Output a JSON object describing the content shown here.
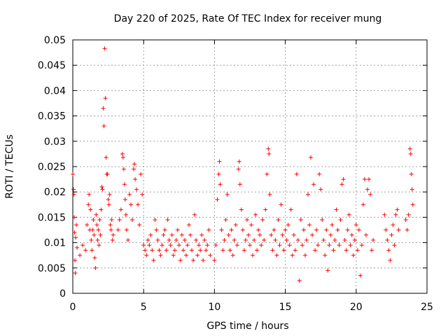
{
  "chart_data": {
    "type": "scatter",
    "title": "Day 220 of 2025, Rate Of TEC Index for receiver mung",
    "xlabel": "GPS time / hours",
    "ylabel": "ROTI / TECUs",
    "xlim": [
      0,
      25
    ],
    "ylim": [
      0,
      0.05
    ],
    "xticks": [
      0,
      5,
      10,
      15,
      20,
      25
    ],
    "yticks": [
      0,
      0.005,
      0.01,
      0.015,
      0.02,
      0.025,
      0.03,
      0.035,
      0.04,
      0.045,
      0.05
    ],
    "xtick_labels": [
      "0",
      "5",
      "10",
      "15",
      "20",
      "25"
    ],
    "ytick_labels": [
      "0",
      "0.005",
      "0.01",
      "0.015",
      "0.02",
      "0.025",
      "0.03",
      "0.035",
      "0.04",
      "0.045",
      "0.05"
    ],
    "grid": true,
    "marker": "+",
    "color": "#ff0000",
    "series": [
      {
        "name": "ROTI",
        "points": [
          [
            0.0,
            0.0235
          ],
          [
            0.05,
            0.0205
          ],
          [
            0.08,
            0.0195
          ],
          [
            0.1,
            0.015
          ],
          [
            0.12,
            0.012
          ],
          [
            0.15,
            0.0065
          ],
          [
            0.18,
            0.004
          ],
          [
            0.2,
            0.011
          ],
          [
            0.25,
            0.0135
          ],
          [
            0.3,
            0.009
          ],
          [
            0.5,
            0.0075
          ],
          [
            0.7,
            0.0095
          ],
          [
            0.9,
            0.0085
          ],
          [
            1.0,
            0.0135
          ],
          [
            1.1,
            0.0175
          ],
          [
            1.15,
            0.0195
          ],
          [
            1.2,
            0.0125
          ],
          [
            1.25,
            0.0165
          ],
          [
            1.3,
            0.0105
          ],
          [
            1.35,
            0.0085
          ],
          [
            1.4,
            0.0125
          ],
          [
            1.45,
            0.0145
          ],
          [
            1.5,
            0.0115
          ],
          [
            1.55,
            0.007
          ],
          [
            1.6,
            0.005
          ],
          [
            1.65,
            0.0155
          ],
          [
            1.7,
            0.0135
          ],
          [
            1.75,
            0.0105
          ],
          [
            1.8,
            0.0125
          ],
          [
            1.85,
            0.0095
          ],
          [
            1.9,
            0.0145
          ],
          [
            1.95,
            0.0115
          ],
          [
            2.0,
            0.0165
          ],
          [
            2.05,
            0.021
          ],
          [
            2.1,
            0.0205
          ],
          [
            2.15,
            0.0365
          ],
          [
            2.2,
            0.033
          ],
          [
            2.25,
            0.0483
          ],
          [
            2.3,
            0.0385
          ],
          [
            2.35,
            0.0268
          ],
          [
            2.4,
            0.0235
          ],
          [
            2.45,
            0.0235
          ],
          [
            2.5,
            0.0185
          ],
          [
            2.55,
            0.0175
          ],
          [
            2.6,
            0.0195
          ],
          [
            2.65,
            0.0135
          ],
          [
            2.7,
            0.0125
          ],
          [
            2.75,
            0.0145
          ],
          [
            2.8,
            0.0105
          ],
          [
            2.85,
            0.0115
          ],
          [
            3.2,
            0.0125
          ],
          [
            3.3,
            0.0145
          ],
          [
            3.4,
            0.0165
          ],
          [
            3.5,
            0.0275
          ],
          [
            3.55,
            0.0268
          ],
          [
            3.6,
            0.0245
          ],
          [
            3.65,
            0.0215
          ],
          [
            3.7,
            0.0185
          ],
          [
            3.75,
            0.0155
          ],
          [
            3.8,
            0.0125
          ],
          [
            3.9,
            0.0105
          ],
          [
            4.0,
            0.0195
          ],
          [
            4.1,
            0.0175
          ],
          [
            4.2,
            0.0145
          ],
          [
            4.3,
            0.0245
          ],
          [
            4.35,
            0.0255
          ],
          [
            4.4,
            0.0225
          ],
          [
            4.5,
            0.0205
          ],
          [
            4.6,
            0.0175
          ],
          [
            4.7,
            0.0135
          ],
          [
            4.8,
            0.0235
          ],
          [
            4.9,
            0.0195
          ],
          [
            5.0,
            0.0095
          ],
          [
            5.1,
            0.0085
          ],
          [
            5.2,
            0.0075
          ],
          [
            5.3,
            0.0105
          ],
          [
            5.4,
            0.0095
          ],
          [
            5.5,
            0.0115
          ],
          [
            5.6,
            0.0085
          ],
          [
            5.7,
            0.0065
          ],
          [
            5.8,
            0.0145
          ],
          [
            5.9,
            0.0125
          ],
          [
            6.0,
            0.0105
          ],
          [
            6.1,
            0.0085
          ],
          [
            6.2,
            0.0075
          ],
          [
            6.3,
            0.0095
          ],
          [
            6.4,
            0.0115
          ],
          [
            6.5,
            0.0125
          ],
          [
            6.6,
            0.0085
          ],
          [
            6.7,
            0.0145
          ],
          [
            6.8,
            0.0105
          ],
          [
            6.9,
            0.0095
          ],
          [
            7.0,
            0.0115
          ],
          [
            7.1,
            0.0075
          ],
          [
            7.2,
            0.0085
          ],
          [
            7.3,
            0.0105
          ],
          [
            7.4,
            0.0125
          ],
          [
            7.5,
            0.0095
          ],
          [
            7.6,
            0.0065
          ],
          [
            7.7,
            0.0115
          ],
          [
            7.8,
            0.0085
          ],
          [
            7.9,
            0.0105
          ],
          [
            8.0,
            0.0075
          ],
          [
            8.1,
            0.0095
          ],
          [
            8.2,
            0.0135
          ],
          [
            8.3,
            0.0115
          ],
          [
            8.4,
            0.0085
          ],
          [
            8.5,
            0.0065
          ],
          [
            8.6,
            0.0155
          ],
          [
            8.7,
            0.0105
          ],
          [
            8.8,
            0.0075
          ],
          [
            8.9,
            0.0095
          ],
          [
            9.0,
            0.0085
          ],
          [
            9.1,
            0.0115
          ],
          [
            9.2,
            0.0065
          ],
          [
            9.3,
            0.0105
          ],
          [
            9.4,
            0.0085
          ],
          [
            9.5,
            0.0095
          ],
          [
            9.6,
            0.0125
          ],
          [
            9.7,
            0.0075
          ],
          [
            10.0,
            0.0065
          ],
          [
            10.1,
            0.0095
          ],
          [
            10.2,
            0.0185
          ],
          [
            10.3,
            0.0235
          ],
          [
            10.35,
            0.026
          ],
          [
            10.4,
            0.0215
          ],
          [
            10.5,
            0.0125
          ],
          [
            10.6,
            0.0085
          ],
          [
            10.7,
            0.0105
          ],
          [
            10.8,
            0.0145
          ],
          [
            10.9,
            0.0195
          ],
          [
            11.0,
            0.0115
          ],
          [
            11.1,
            0.0085
          ],
          [
            11.2,
            0.0125
          ],
          [
            11.3,
            0.0075
          ],
          [
            11.4,
            0.0105
          ],
          [
            11.5,
            0.0135
          ],
          [
            11.6,
            0.0095
          ],
          [
            11.7,
            0.0245
          ],
          [
            11.75,
            0.026
          ],
          [
            11.8,
            0.0215
          ],
          [
            11.9,
            0.0165
          ],
          [
            12.0,
            0.0125
          ],
          [
            12.1,
            0.0085
          ],
          [
            12.2,
            0.0105
          ],
          [
            12.3,
            0.0145
          ],
          [
            12.4,
            0.0115
          ],
          [
            12.5,
            0.0095
          ],
          [
            12.6,
            0.0135
          ],
          [
            12.7,
            0.0075
          ],
          [
            12.8,
            0.0105
          ],
          [
            12.9,
            0.0155
          ],
          [
            13.0,
            0.0085
          ],
          [
            13.1,
            0.0125
          ],
          [
            13.2,
            0.0115
          ],
          [
            13.3,
            0.0095
          ],
          [
            13.4,
            0.0145
          ],
          [
            13.5,
            0.0105
          ],
          [
            13.6,
            0.0165
          ],
          [
            13.7,
            0.0235
          ],
          [
            13.8,
            0.0285
          ],
          [
            13.85,
            0.0275
          ],
          [
            13.9,
            0.0195
          ],
          [
            14.0,
            0.0115
          ],
          [
            14.1,
            0.0085
          ],
          [
            14.2,
            0.0125
          ],
          [
            14.3,
            0.0105
          ],
          [
            14.4,
            0.0075
          ],
          [
            14.5,
            0.0145
          ],
          [
            14.6,
            0.0095
          ],
          [
            14.7,
            0.0175
          ],
          [
            14.8,
            0.0115
          ],
          [
            14.9,
            0.0085
          ],
          [
            15.0,
            0.0125
          ],
          [
            15.1,
            0.0105
          ],
          [
            15.2,
            0.0135
          ],
          [
            15.3,
            0.0095
          ],
          [
            15.4,
            0.0165
          ],
          [
            15.5,
            0.0075
          ],
          [
            15.6,
            0.0115
          ],
          [
            15.7,
            0.0085
          ],
          [
            15.8,
            0.0235
          ],
          [
            15.9,
            0.0105
          ],
          [
            16.0,
            0.0025
          ],
          [
            16.1,
            0.0145
          ],
          [
            16.2,
            0.0095
          ],
          [
            16.3,
            0.0125
          ],
          [
            16.4,
            0.0075
          ],
          [
            16.5,
            0.0105
          ],
          [
            16.6,
            0.0195
          ],
          [
            16.7,
            0.0135
          ],
          [
            16.8,
            0.0268
          ],
          [
            16.9,
            0.0115
          ],
          [
            17.0,
            0.0215
          ],
          [
            17.1,
            0.0085
          ],
          [
            17.2,
            0.0125
          ],
          [
            17.3,
            0.0095
          ],
          [
            17.4,
            0.0235
          ],
          [
            17.5,
            0.0205
          ],
          [
            17.6,
            0.0145
          ],
          [
            17.7,
            0.0105
          ],
          [
            17.8,
            0.0075
          ],
          [
            17.9,
            0.0125
          ],
          [
            18.0,
            0.0045
          ],
          [
            18.1,
            0.0095
          ],
          [
            18.2,
            0.0115
          ],
          [
            18.3,
            0.0135
          ],
          [
            18.4,
            0.0085
          ],
          [
            18.5,
            0.0105
          ],
          [
            18.6,
            0.0165
          ],
          [
            18.7,
            0.0125
          ],
          [
            18.8,
            0.0095
          ],
          [
            18.9,
            0.0145
          ],
          [
            19.0,
            0.0215
          ],
          [
            19.1,
            0.0225
          ],
          [
            19.2,
            0.0105
          ],
          [
            19.3,
            0.0085
          ],
          [
            19.4,
            0.0125
          ],
          [
            19.5,
            0.0155
          ],
          [
            19.6,
            0.0095
          ],
          [
            19.7,
            0.0115
          ],
          [
            19.8,
            0.0075
          ],
          [
            19.9,
            0.0105
          ],
          [
            20.0,
            0.0135
          ],
          [
            20.1,
            0.0085
          ],
          [
            20.2,
            0.0125
          ],
          [
            20.3,
            0.0035
          ],
          [
            20.4,
            0.0095
          ],
          [
            20.5,
            0.0175
          ],
          [
            20.6,
            0.0225
          ],
          [
            20.7,
            0.0115
          ],
          [
            20.8,
            0.0205
          ],
          [
            20.9,
            0.0225
          ],
          [
            21.0,
            0.0195
          ],
          [
            21.1,
            0.0085
          ],
          [
            21.2,
            0.0105
          ],
          [
            22.0,
            0.0155
          ],
          [
            22.1,
            0.0125
          ],
          [
            22.2,
            0.0105
          ],
          [
            22.3,
            0.0085
          ],
          [
            22.4,
            0.0065
          ],
          [
            22.5,
            0.0115
          ],
          [
            22.6,
            0.0135
          ],
          [
            22.7,
            0.0095
          ],
          [
            22.8,
            0.0155
          ],
          [
            22.9,
            0.0165
          ],
          [
            23.0,
            0.0125
          ],
          [
            23.5,
            0.0145
          ],
          [
            23.6,
            0.0125
          ],
          [
            23.7,
            0.0155
          ],
          [
            23.8,
            0.0285
          ],
          [
            23.85,
            0.0275
          ],
          [
            23.9,
            0.0235
          ],
          [
            23.95,
            0.0205
          ],
          [
            24.0,
            0.0175
          ]
        ]
      }
    ]
  }
}
